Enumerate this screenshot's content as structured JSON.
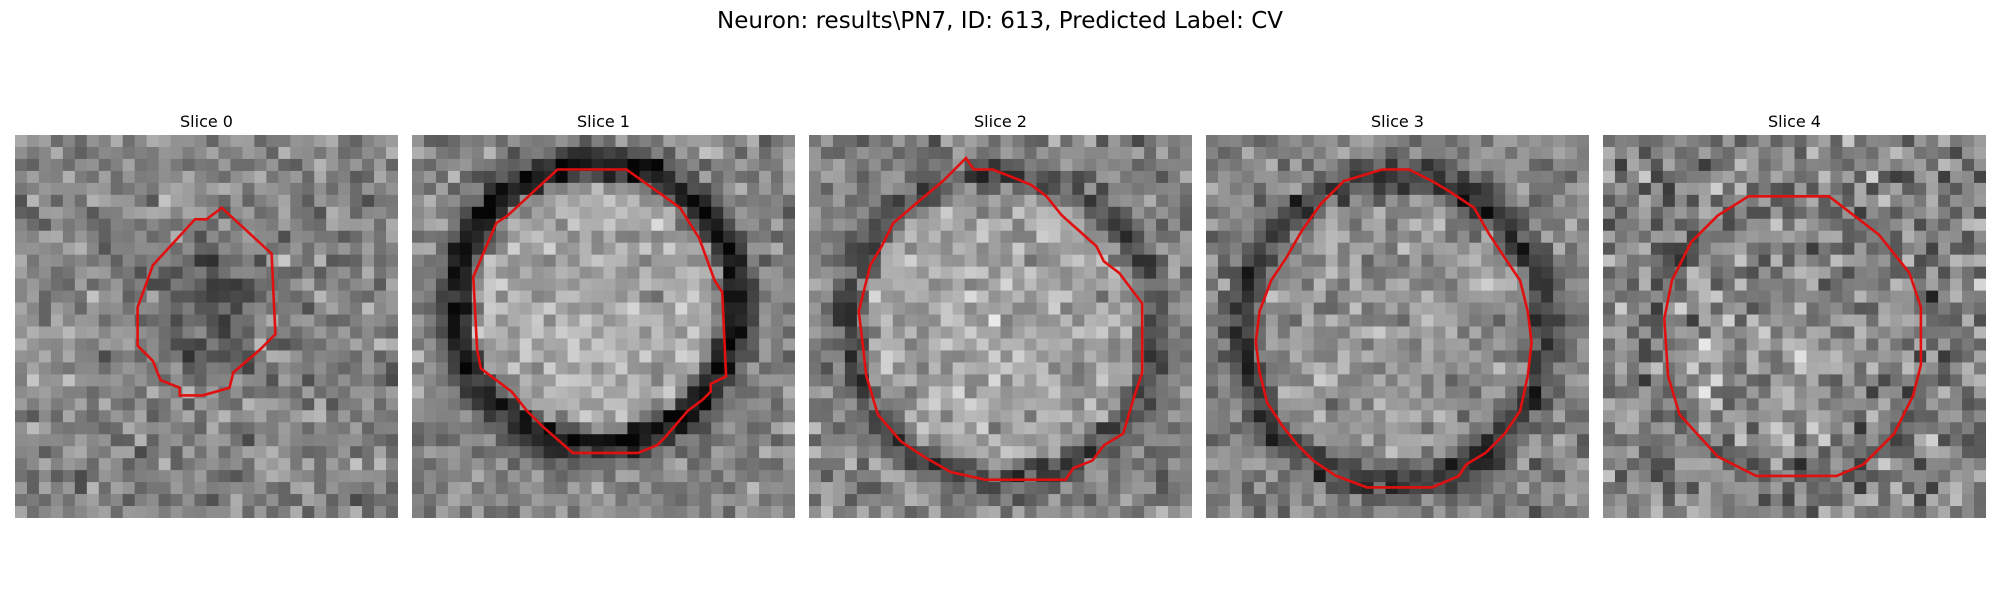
{
  "figure": {
    "title": "Neuron: results\\PN7, ID: 613, Predicted Label: CV",
    "contour_color": "#e01010"
  },
  "panels": [
    {
      "title": "Slice 0",
      "contour": [
        [
          0.54,
          0.19
        ],
        [
          0.67,
          0.31
        ],
        [
          0.68,
          0.52
        ],
        [
          0.64,
          0.56
        ],
        [
          0.57,
          0.62
        ],
        [
          0.56,
          0.66
        ],
        [
          0.49,
          0.68
        ],
        [
          0.43,
          0.68
        ],
        [
          0.43,
          0.66
        ],
        [
          0.38,
          0.64
        ],
        [
          0.36,
          0.59
        ],
        [
          0.32,
          0.55
        ],
        [
          0.32,
          0.45
        ],
        [
          0.36,
          0.34
        ],
        [
          0.47,
          0.22
        ],
        [
          0.5,
          0.22
        ]
      ]
    },
    {
      "title": "Slice 1",
      "contour": [
        [
          0.38,
          0.09
        ],
        [
          0.56,
          0.09
        ],
        [
          0.7,
          0.19
        ],
        [
          0.75,
          0.27
        ],
        [
          0.79,
          0.38
        ],
        [
          0.81,
          0.41
        ],
        [
          0.82,
          0.63
        ],
        [
          0.78,
          0.65
        ],
        [
          0.78,
          0.67
        ],
        [
          0.76,
          0.69
        ],
        [
          0.72,
          0.72
        ],
        [
          0.66,
          0.79
        ],
        [
          0.64,
          0.81
        ],
        [
          0.59,
          0.83
        ],
        [
          0.42,
          0.83
        ],
        [
          0.34,
          0.76
        ],
        [
          0.3,
          0.72
        ],
        [
          0.26,
          0.67
        ],
        [
          0.18,
          0.61
        ],
        [
          0.17,
          0.56
        ],
        [
          0.16,
          0.37
        ],
        [
          0.22,
          0.23
        ],
        [
          0.25,
          0.21
        ]
      ]
    },
    {
      "title": "Slice 2",
      "contour": [
        [
          0.4,
          0.07
        ],
        [
          0.41,
          0.06
        ],
        [
          0.43,
          0.09
        ],
        [
          0.48,
          0.09
        ],
        [
          0.53,
          0.11
        ],
        [
          0.58,
          0.13
        ],
        [
          0.62,
          0.16
        ],
        [
          0.66,
          0.21
        ],
        [
          0.75,
          0.29
        ],
        [
          0.77,
          0.33
        ],
        [
          0.81,
          0.36
        ],
        [
          0.87,
          0.44
        ],
        [
          0.87,
          0.62
        ],
        [
          0.85,
          0.68
        ],
        [
          0.82,
          0.78
        ],
        [
          0.77,
          0.81
        ],
        [
          0.74,
          0.85
        ],
        [
          0.69,
          0.87
        ],
        [
          0.67,
          0.9
        ],
        [
          0.59,
          0.9
        ],
        [
          0.46,
          0.9
        ],
        [
          0.37,
          0.88
        ],
        [
          0.3,
          0.84
        ],
        [
          0.24,
          0.8
        ],
        [
          0.18,
          0.73
        ],
        [
          0.15,
          0.63
        ],
        [
          0.13,
          0.46
        ],
        [
          0.16,
          0.34
        ],
        [
          0.19,
          0.29
        ],
        [
          0.22,
          0.23
        ],
        [
          0.29,
          0.17
        ],
        [
          0.35,
          0.12
        ]
      ]
    },
    {
      "title": "Slice 3",
      "contour": [
        [
          0.36,
          0.12
        ],
        [
          0.46,
          0.09
        ],
        [
          0.53,
          0.09
        ],
        [
          0.59,
          0.12
        ],
        [
          0.64,
          0.15
        ],
        [
          0.7,
          0.19
        ],
        [
          0.74,
          0.26
        ],
        [
          0.78,
          0.32
        ],
        [
          0.82,
          0.38
        ],
        [
          0.84,
          0.46
        ],
        [
          0.85,
          0.54
        ],
        [
          0.84,
          0.63
        ],
        [
          0.82,
          0.72
        ],
        [
          0.78,
          0.78
        ],
        [
          0.73,
          0.83
        ],
        [
          0.68,
          0.86
        ],
        [
          0.66,
          0.89
        ],
        [
          0.59,
          0.92
        ],
        [
          0.42,
          0.92
        ],
        [
          0.34,
          0.89
        ],
        [
          0.28,
          0.85
        ],
        [
          0.24,
          0.81
        ],
        [
          0.2,
          0.76
        ],
        [
          0.16,
          0.7
        ],
        [
          0.14,
          0.62
        ],
        [
          0.13,
          0.54
        ],
        [
          0.14,
          0.46
        ],
        [
          0.17,
          0.38
        ],
        [
          0.21,
          0.32
        ],
        [
          0.25,
          0.25
        ],
        [
          0.3,
          0.18
        ]
      ]
    },
    {
      "title": "Slice 4",
      "contour": [
        [
          0.38,
          0.16
        ],
        [
          0.59,
          0.16
        ],
        [
          0.72,
          0.26
        ],
        [
          0.8,
          0.36
        ],
        [
          0.83,
          0.45
        ],
        [
          0.83,
          0.6
        ],
        [
          0.81,
          0.68
        ],
        [
          0.76,
          0.78
        ],
        [
          0.68,
          0.86
        ],
        [
          0.61,
          0.89
        ],
        [
          0.4,
          0.89
        ],
        [
          0.3,
          0.84
        ],
        [
          0.2,
          0.73
        ],
        [
          0.17,
          0.63
        ],
        [
          0.16,
          0.48
        ],
        [
          0.18,
          0.38
        ],
        [
          0.23,
          0.28
        ],
        [
          0.3,
          0.21
        ]
      ]
    }
  ]
}
